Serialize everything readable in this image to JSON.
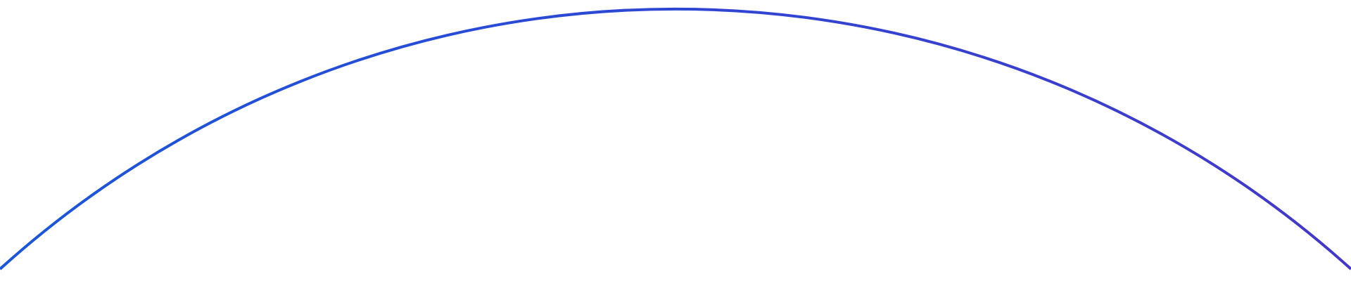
{
  "decoration": {
    "shape": "arc",
    "gradient_start_color": "#1a56db",
    "gradient_end_color": "#4338ca",
    "background_color": "#ffffff"
  }
}
